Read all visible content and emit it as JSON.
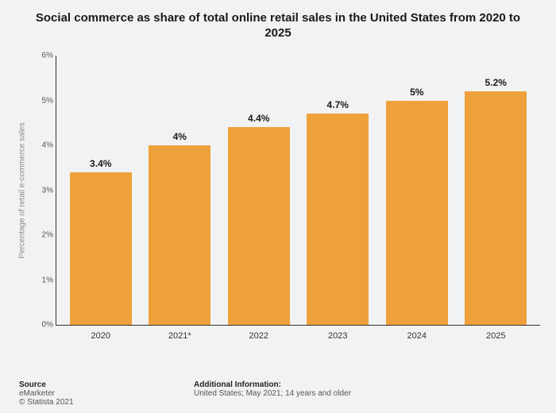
{
  "title": "Social commerce as share of total online retail sales in the United States from 2020 to 2025",
  "title_fontsize": 15,
  "chart": {
    "type": "bar",
    "categories": [
      "2020",
      "2021*",
      "2022",
      "2023",
      "2024",
      "2025"
    ],
    "values": [
      3.4,
      4,
      4.4,
      4.7,
      5,
      5.2
    ],
    "value_labels": [
      "3.4%",
      "4%",
      "4.4%",
      "4.7%",
      "5%",
      "5.2%"
    ],
    "bar_color": "#eea13a",
    "ylabel": "Percentage of retail e-commerce sales",
    "ylim": [
      0,
      6
    ],
    "ytick_step": 1,
    "ytick_labels": [
      "0%",
      "1%",
      "2%",
      "3%",
      "4%",
      "5%",
      "6%"
    ],
    "background_color": "#f1f2f3",
    "axis_color": "#333333",
    "value_label_fontsize": 12,
    "tick_fontsize": 10,
    "bar_width_ratio": 0.78
  },
  "footer": {
    "source_heading": "Source",
    "source_text": "eMarketer",
    "copyright": "© Statista 2021",
    "additional_heading": "Additional Information:",
    "additional_text": "United States; May 2021; 14 years and older"
  }
}
